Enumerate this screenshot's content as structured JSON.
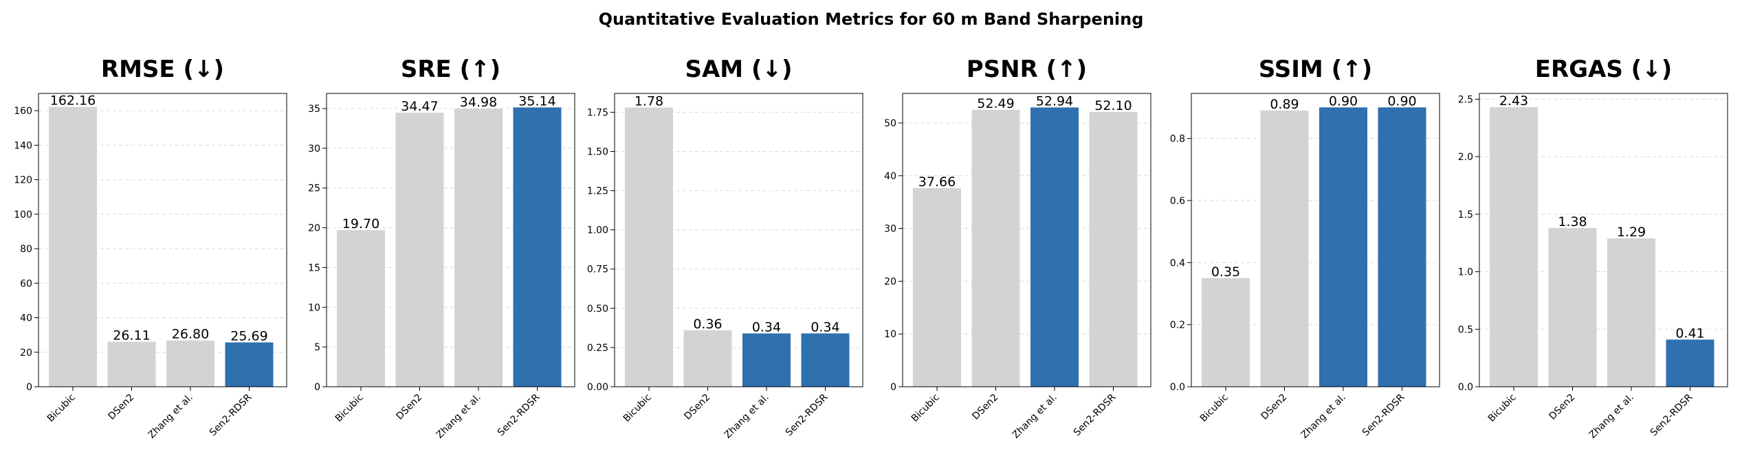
{
  "figure": {
    "title": "Quantitative Evaluation Metrics for 60 m Band Sharpening"
  },
  "colors": {
    "baseline": "#d3d3d3",
    "highlight": "#2f70af",
    "grid": "#d9d9d9",
    "axis": "#000000"
  },
  "chart_data": [
    {
      "type": "bar",
      "title": "RMSE (↓)",
      "categories": [
        "Bicubic",
        "DSen2",
        "Zhang et al.",
        "Sen2-RDSR"
      ],
      "values": [
        162.16,
        26.11,
        26.8,
        25.69
      ],
      "value_labels": [
        "162.16",
        "26.11",
        "26.80",
        "25.69"
      ],
      "highlighted": [
        false,
        false,
        false,
        true
      ],
      "ylim": [
        0,
        170
      ],
      "yticks": [
        0,
        20,
        40,
        60,
        80,
        100,
        120,
        140,
        160
      ],
      "ytick_labels": [
        "0",
        "20",
        "40",
        "60",
        "80",
        "100",
        "120",
        "140",
        "160"
      ],
      "grid": "y-dashed"
    },
    {
      "type": "bar",
      "title": "SRE (↑)",
      "categories": [
        "Bicubic",
        "DSen2",
        "Zhang et al.",
        "Sen2-RDSR"
      ],
      "values": [
        19.7,
        34.47,
        34.98,
        35.14
      ],
      "value_labels": [
        "19.70",
        "34.47",
        "34.98",
        "35.14"
      ],
      "highlighted": [
        false,
        false,
        false,
        true
      ],
      "ylim": [
        0,
        36.9
      ],
      "yticks": [
        0,
        5,
        10,
        15,
        20,
        25,
        30,
        35
      ],
      "ytick_labels": [
        "0",
        "5",
        "10",
        "15",
        "20",
        "25",
        "30",
        "35"
      ],
      "grid": "y-dashed"
    },
    {
      "type": "bar",
      "title": "SAM (↓)",
      "categories": [
        "Bicubic",
        "DSen2",
        "Zhang et al.",
        "Sen2-RDSR"
      ],
      "values": [
        1.78,
        0.36,
        0.34,
        0.34
      ],
      "value_labels": [
        "1.78",
        "0.36",
        "0.34",
        "0.34"
      ],
      "highlighted": [
        false,
        false,
        true,
        true
      ],
      "ylim": [
        0,
        1.87
      ],
      "yticks": [
        0,
        0.25,
        0.5,
        0.75,
        1.0,
        1.25,
        1.5,
        1.75
      ],
      "ytick_labels": [
        "0.00",
        "0.25",
        "0.50",
        "0.75",
        "1.00",
        "1.25",
        "1.50",
        "1.75"
      ],
      "grid": "y-dashed"
    },
    {
      "type": "bar",
      "title": "PSNR (↑)",
      "categories": [
        "Bicubic",
        "DSen2",
        "Zhang et al.",
        "Sen2-RDSR"
      ],
      "values": [
        37.66,
        52.49,
        52.94,
        52.1
      ],
      "value_labels": [
        "37.66",
        "52.49",
        "52.94",
        "52.10"
      ],
      "highlighted": [
        false,
        false,
        true,
        false
      ],
      "ylim": [
        0,
        55.6
      ],
      "yticks": [
        0,
        10,
        20,
        30,
        40,
        50
      ],
      "ytick_labels": [
        "0",
        "10",
        "20",
        "30",
        "40",
        "50"
      ],
      "grid": "y-dashed"
    },
    {
      "type": "bar",
      "title": "SSIM (↑)",
      "categories": [
        "Bicubic",
        "DSen2",
        "Zhang et al.",
        "Sen2-RDSR"
      ],
      "values": [
        0.35,
        0.89,
        0.9,
        0.9
      ],
      "value_labels": [
        "0.35",
        "0.89",
        "0.90",
        "0.90"
      ],
      "highlighted": [
        false,
        false,
        true,
        true
      ],
      "ylim": [
        0,
        0.945
      ],
      "yticks": [
        0,
        0.2,
        0.4,
        0.6,
        0.8
      ],
      "ytick_labels": [
        "0.0",
        "0.2",
        "0.4",
        "0.6",
        "0.8"
      ],
      "grid": "y-dashed"
    },
    {
      "type": "bar",
      "title": "ERGAS (↓)",
      "categories": [
        "Bicubic",
        "DSen2",
        "Zhang et al.",
        "Sen2-RDSR"
      ],
      "values": [
        2.43,
        1.38,
        1.29,
        0.41
      ],
      "value_labels": [
        "2.43",
        "1.38",
        "1.29",
        "0.41"
      ],
      "highlighted": [
        false,
        false,
        false,
        true
      ],
      "ylim": [
        0,
        2.55
      ],
      "yticks": [
        0,
        0.5,
        1.0,
        1.5,
        2.0,
        2.5
      ],
      "ytick_labels": [
        "0.0",
        "0.5",
        "1.0",
        "1.5",
        "2.0",
        "2.5"
      ],
      "grid": "y-dashed"
    }
  ]
}
